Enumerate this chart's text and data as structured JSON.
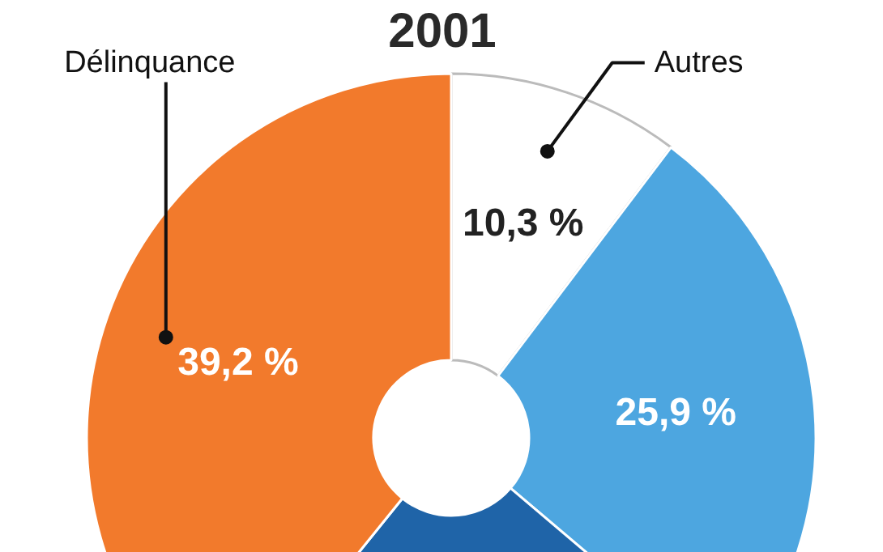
{
  "chart_data": {
    "type": "donut",
    "title": "2001",
    "categories": [
      "Autres",
      null,
      null,
      "Délinquance"
    ],
    "values": [
      10.3,
      25.9,
      24.6,
      39.2
    ],
    "colors": [
      "#ffffff",
      "#4da6e0",
      "#1f64a8",
      "#f27a2c"
    ],
    "value_labels": [
      "10,3 %",
      "25,9 %",
      null,
      "39,2 %"
    ]
  }
}
